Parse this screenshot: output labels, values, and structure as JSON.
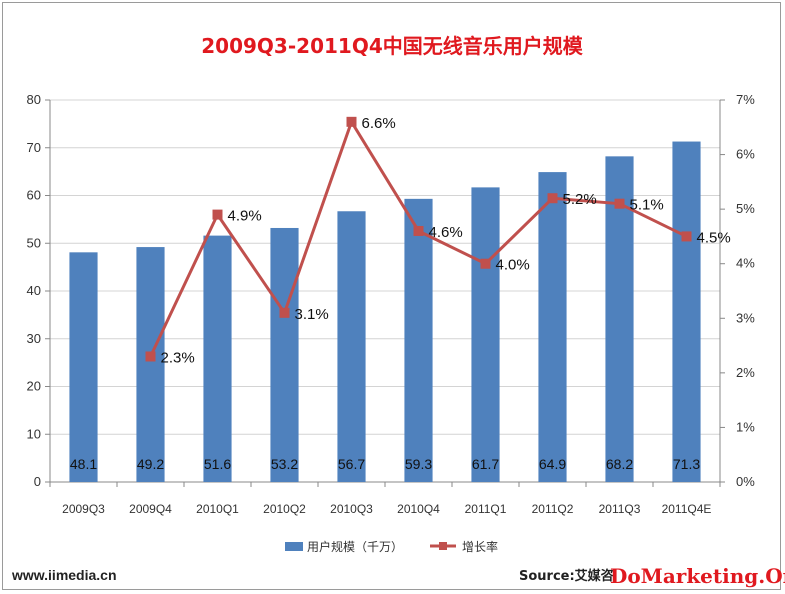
{
  "chart_data": {
    "type": "bar",
    "title": "2009Q3-2011Q4中国无线音乐用户规模",
    "categories": [
      "2009Q3",
      "2009Q4",
      "2010Q1",
      "2010Q2",
      "2010Q3",
      "2010Q4",
      "2011Q1",
      "2011Q2",
      "2011Q3",
      "2011Q4E"
    ],
    "series": [
      {
        "name": "用户规模（千万）",
        "type": "bar",
        "axis": "left",
        "values": [
          48.1,
          49.2,
          51.6,
          53.2,
          56.7,
          59.3,
          61.7,
          64.9,
          68.2,
          71.3
        ],
        "labels": [
          "48.1",
          "49.2",
          "51.6",
          "53.2",
          "56.7",
          "59.3",
          "61.7",
          "64.9",
          "68.2",
          "71.3"
        ],
        "color": "#4f81bd"
      },
      {
        "name": "增长率",
        "type": "line",
        "axis": "right",
        "values": [
          null,
          2.3,
          4.9,
          3.1,
          6.6,
          4.6,
          4.0,
          5.2,
          5.1,
          4.5
        ],
        "labels": [
          "",
          "2.3%",
          "4.9%",
          "3.1%",
          "6.6%",
          "4.6%",
          "4.0%",
          "5.2%",
          "5.1%",
          "4.5%"
        ],
        "color": "#c0504d"
      }
    ],
    "y_left": {
      "min": 0,
      "max": 80,
      "ticks": [
        "0",
        "10",
        "20",
        "30",
        "40",
        "50",
        "60",
        "70",
        "80"
      ]
    },
    "y_right": {
      "min": 0,
      "max": 7,
      "ticks": [
        "0%",
        "1%",
        "2%",
        "3%",
        "4%",
        "5%",
        "6%",
        "7%"
      ]
    },
    "grid": true,
    "legend_position": "bottom"
  },
  "footer": {
    "source_site": "www.iimedia.cn",
    "source_label": "Source:艾媒咨",
    "watermark": "DoMarketing.Org"
  },
  "colors": {
    "title": "#e0191f",
    "bar": "#4f81bd",
    "line": "#c0504d"
  }
}
